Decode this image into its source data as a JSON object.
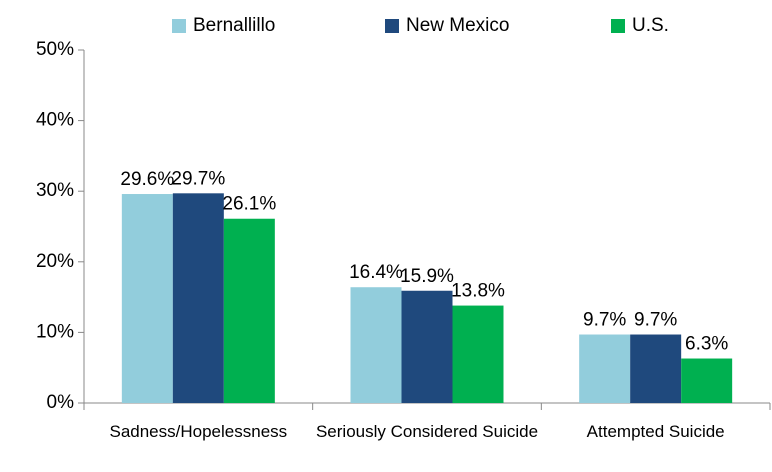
{
  "chart_data": {
    "type": "bar",
    "categories": [
      "Sadness/Hopelessness",
      "Seriously Considered Suicide",
      "Attempted Suicide"
    ],
    "series": [
      {
        "name": "Bernallillo",
        "color": "#92cddc",
        "values": [
          29.6,
          16.4,
          9.7
        ],
        "value_labels": [
          "29.6%",
          "16.4%",
          "9.7%"
        ]
      },
      {
        "name": "New Mexico",
        "color": "#1f497d",
        "values": [
          29.7,
          15.9,
          9.7
        ],
        "value_labels": [
          "29.7%",
          "15.9%",
          "9.7%"
        ]
      },
      {
        "name": "U.S.",
        "color": "#00b050",
        "values": [
          26.1,
          13.8,
          6.3
        ],
        "value_labels": [
          "26.1%",
          "13.8%",
          "6.3%"
        ]
      }
    ],
    "ylim": [
      0,
      50
    ],
    "yticks": [
      {
        "value": 0,
        "label": "0%"
      },
      {
        "value": 10,
        "label": "10%"
      },
      {
        "value": 20,
        "label": "20%"
      },
      {
        "value": 30,
        "label": "30%"
      },
      {
        "value": 40,
        "label": "40%"
      },
      {
        "value": 50,
        "label": "50%"
      }
    ],
    "grid": false,
    "legend": "top"
  }
}
